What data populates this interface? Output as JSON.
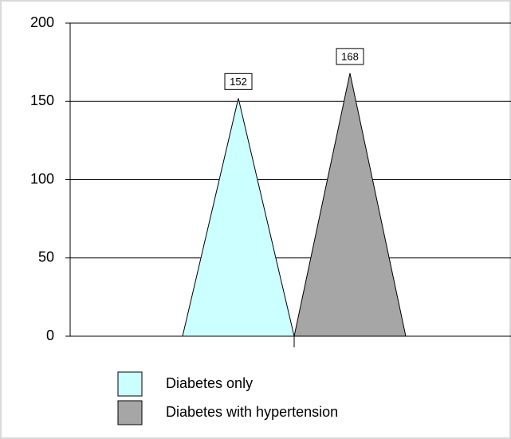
{
  "chart_data": {
    "type": "bar",
    "bar_shape": "triangle",
    "categories": [
      null
    ],
    "series": [
      {
        "name": "Diabetes only",
        "color": "#ccffff",
        "values": [
          152
        ]
      },
      {
        "name": "Diabetes with hypertension",
        "color": "#a6a6a6",
        "values": [
          168
        ]
      }
    ],
    "ylim": [
      0,
      200
    ],
    "yticks": [
      0,
      50,
      100,
      150,
      200
    ],
    "grid": true
  }
}
